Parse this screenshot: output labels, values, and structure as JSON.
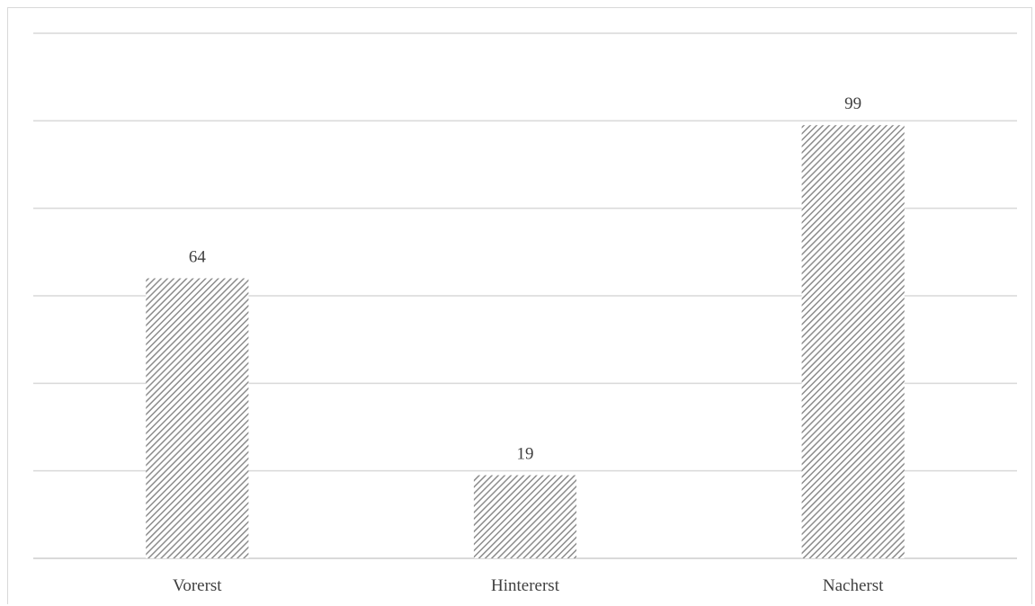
{
  "chart_data": {
    "type": "bar",
    "categories": [
      "Vorerst",
      "Hintererst",
      "Nacherst"
    ],
    "values": [
      64,
      19,
      99
    ],
    "ylim": [
      0,
      120
    ],
    "grid_step": 20,
    "grid": true,
    "legend": "none",
    "title": "",
    "xlabel": "",
    "ylabel": "",
    "bar_fill": "diagonal-hatch",
    "bar_color": "#8c8c8c",
    "grid_color": "#d9d9d9",
    "label_color": "#404040"
  }
}
